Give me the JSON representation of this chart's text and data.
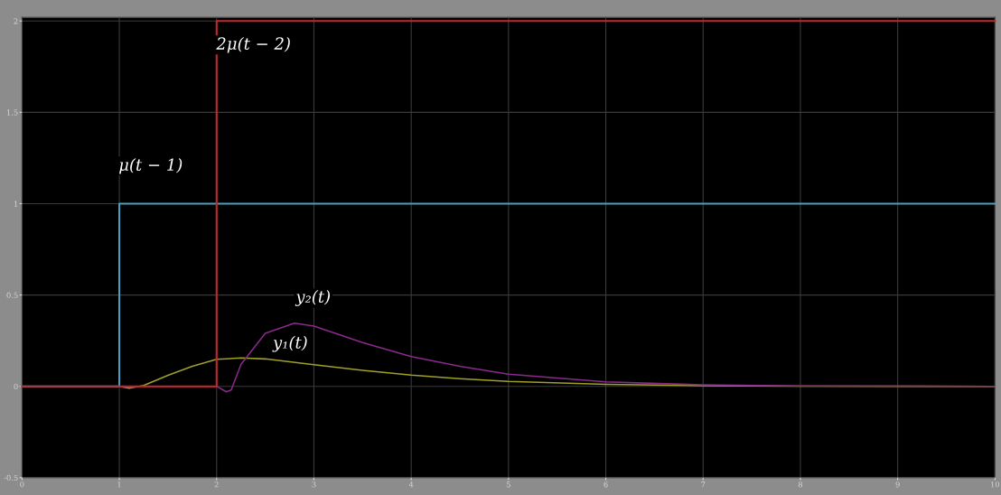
{
  "chart_data": {
    "type": "line",
    "xlim": [
      0,
      10
    ],
    "ylim": [
      -0.5,
      2.02
    ],
    "xticks": [
      0,
      1,
      2,
      3,
      4,
      5,
      6,
      7,
      8,
      9,
      10
    ],
    "yticks": [
      -0.5,
      0,
      0.5,
      1,
      1.5,
      2
    ],
    "grid": true,
    "series": [
      {
        "type": "step",
        "color": "#4a9fc0",
        "x": [
          0,
          1,
          10
        ],
        "values": [
          0,
          1,
          1
        ]
      },
      {
        "type": "step",
        "color": "#c02828",
        "x": [
          0,
          2,
          10
        ],
        "values": [
          0,
          2,
          2
        ]
      },
      {
        "color": "#a0a028",
        "x": [
          0,
          1,
          1.1,
          1.25,
          1.5,
          1.75,
          2,
          2.25,
          2.5,
          2.75,
          3,
          3.5,
          4,
          4.5,
          5,
          6,
          7,
          8,
          10
        ],
        "values": [
          0,
          0,
          -0.01,
          0.005,
          0.06,
          0.11,
          0.148,
          0.155,
          0.15,
          0.135,
          0.118,
          0.088,
          0.062,
          0.042,
          0.027,
          0.011,
          0.004,
          0.001,
          0
        ]
      },
      {
        "color": "#8a2a8a",
        "x": [
          0,
          2,
          2.1,
          2.15,
          2.25,
          2.5,
          2.8,
          3,
          3.5,
          4,
          4.5,
          5,
          6,
          7,
          8,
          10
        ],
        "values": [
          0,
          0,
          -0.03,
          -0.02,
          0.12,
          0.29,
          0.346,
          0.33,
          0.24,
          0.163,
          0.11,
          0.067,
          0.025,
          0.008,
          0.002,
          0
        ]
      }
    ],
    "annotations": [
      {
        "text": "μ(t − 1)",
        "x": 1,
        "y": 1
      },
      "2μ(t − 2)",
      {
        "text": "y₂(t)",
        "x": 2.8,
        "y": 0.346
      },
      {
        "text": "y₁(t)",
        "x": 2.5,
        "y": 0.15
      }
    ]
  }
}
